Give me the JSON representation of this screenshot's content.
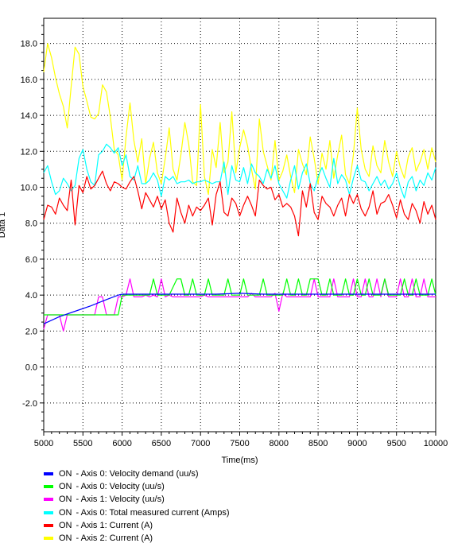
{
  "chart_data": {
    "type": "line",
    "xlabel": "Time(ms)",
    "ylabel": "Data 1",
    "xlim": [
      5000,
      10000
    ],
    "ylim": [
      -3.6,
      19.4
    ],
    "xticks": [
      5000,
      5500,
      6000,
      6500,
      7000,
      7500,
      8000,
      8500,
      9000,
      9500,
      10000
    ],
    "yticks": [
      -2.0,
      0.0,
      2.0,
      4.0,
      6.0,
      8.0,
      10.0,
      12.0,
      14.0,
      16.0,
      18.0
    ],
    "xtick_labels": [
      "5000",
      "5500",
      "6000",
      "6500",
      "7000",
      "7500",
      "8000",
      "8500",
      "9000",
      "9500",
      "10000"
    ],
    "ytick_labels": [
      "-2.0",
      "0.0",
      "2.0",
      "4.0",
      "6.0",
      "8.0",
      "10.0",
      "12.0",
      "14.0",
      "16.0",
      "18.0"
    ],
    "grid": true,
    "legend_position": "bottom",
    "series": [
      {
        "status": "ON",
        "name": "- Axis 0: Velocity demand (uu/s)",
        "color": "#0000ff",
        "x": [
          5000,
          5200,
          5400,
          5600,
          5800,
          5950,
          6000,
          6300,
          6600,
          6900,
          7200,
          7500,
          7800,
          8100,
          8400,
          8700,
          9000,
          9300,
          9600,
          10000
        ],
        "y": [
          2.4,
          2.8,
          3.1,
          3.4,
          3.75,
          4.0,
          4.05,
          4.05,
          4.05,
          4.05,
          4.05,
          4.1,
          4.05,
          4.05,
          4.05,
          4.05,
          4.05,
          4.05,
          4.05,
          4.05
        ]
      },
      {
        "status": "ON",
        "name": "- Axis 0: Velocity (uu/s)",
        "color": "#00ff00",
        "x": [
          5000,
          5300,
          5350,
          5650,
          5700,
          5950,
          6000,
          6350,
          6400,
          6450,
          6500,
          6550,
          6600,
          6700,
          6750,
          6800,
          6850,
          6900,
          6950,
          7000,
          7050,
          7100,
          7150,
          7200,
          7250,
          7300,
          7350,
          7400,
          7450,
          7500,
          7550,
          7600,
          7650,
          7700,
          7750,
          7800,
          7850,
          7900,
          7950,
          8000,
          8050,
          8100,
          8150,
          8200,
          8250,
          8300,
          8350,
          8400,
          8450,
          8500,
          8550,
          8600,
          8650,
          8700,
          8750,
          8800,
          8850,
          8900,
          8950,
          9000,
          9050,
          9100,
          9150,
          9200,
          9250,
          9300,
          9350,
          9400,
          9450,
          9500,
          9550,
          9600,
          9650,
          9700,
          9750,
          9800,
          9850,
          9900,
          9950,
          10000
        ],
        "y": [
          2.9,
          2.9,
          2.9,
          2.9,
          2.9,
          2.9,
          4.0,
          4.0,
          4.9,
          4.0,
          4.0,
          4.0,
          4.0,
          4.9,
          4.9,
          4.0,
          4.0,
          4.9,
          4.0,
          4.0,
          4.0,
          4.9,
          4.0,
          4.0,
          4.0,
          4.0,
          4.9,
          4.0,
          4.0,
          4.0,
          4.9,
          4.0,
          4.0,
          4.0,
          4.0,
          4.9,
          4.0,
          4.0,
          4.0,
          4.0,
          4.0,
          4.9,
          4.0,
          4.0,
          4.9,
          4.0,
          4.0,
          4.9,
          4.9,
          4.9,
          4.0,
          4.0,
          4.9,
          4.0,
          4.0,
          4.0,
          4.9,
          4.0,
          4.0,
          4.9,
          4.0,
          4.0,
          4.9,
          4.0,
          4.0,
          4.0,
          4.9,
          4.0,
          4.0,
          4.0,
          4.0,
          4.9,
          4.0,
          4.0,
          4.9,
          4.0,
          4.0,
          4.0,
          4.9,
          4.0
        ]
      },
      {
        "status": "ON",
        "name": "- Axis 1: Velocity (uu/s)",
        "color": "#ff00ff",
        "x": [
          5000,
          5050,
          5100,
          5150,
          5200,
          5250,
          5300,
          5350,
          5400,
          5450,
          5500,
          5550,
          5600,
          5650,
          5700,
          5750,
          5800,
          5850,
          5900,
          5950,
          6000,
          6050,
          6100,
          6150,
          6200,
          6250,
          6300,
          6350,
          6400,
          6450,
          6500,
          6550,
          6600,
          6650,
          6700,
          6750,
          6800,
          6850,
          6900,
          6950,
          7000,
          7050,
          7100,
          7150,
          7200,
          7250,
          7300,
          7350,
          7400,
          7450,
          7500,
          7550,
          7600,
          7650,
          7700,
          7750,
          7800,
          7850,
          7900,
          7950,
          8000,
          8050,
          8100,
          8150,
          8200,
          8250,
          8300,
          8350,
          8400,
          8450,
          8500,
          8550,
          8600,
          8650,
          8700,
          8750,
          8800,
          8850,
          8900,
          8950,
          9000,
          9050,
          9100,
          9150,
          9200,
          9250,
          9300,
          9350,
          9400,
          9450,
          9500,
          9550,
          9600,
          9650,
          9700,
          9750,
          9800,
          9850,
          9900,
          9950,
          10000
        ],
        "y": [
          2.1,
          2.9,
          2.9,
          2.9,
          2.9,
          2.0,
          2.9,
          2.9,
          2.9,
          2.9,
          2.9,
          2.9,
          2.9,
          2.9,
          3.9,
          3.9,
          2.9,
          2.9,
          2.9,
          3.9,
          3.9,
          4.0,
          4.9,
          3.9,
          3.9,
          3.9,
          4.0,
          3.9,
          4.0,
          3.9,
          4.9,
          3.9,
          4.0,
          3.9,
          3.9,
          3.9,
          3.9,
          3.9,
          3.9,
          3.9,
          3.9,
          4.0,
          3.9,
          3.9,
          3.9,
          3.9,
          3.9,
          3.9,
          3.9,
          3.9,
          3.9,
          3.9,
          3.9,
          4.1,
          3.9,
          3.9,
          3.9,
          3.9,
          3.9,
          4.1,
          3.1,
          4.1,
          3.9,
          3.9,
          3.9,
          3.9,
          3.9,
          3.9,
          3.9,
          4.9,
          3.9,
          3.9,
          3.9,
          3.9,
          4.9,
          3.9,
          3.9,
          3.9,
          3.9,
          4.9,
          3.9,
          3.9,
          4.9,
          3.9,
          3.9,
          4.9,
          3.9,
          4.9,
          3.9,
          3.9,
          3.9,
          4.9,
          3.9,
          3.9,
          4.9,
          3.9,
          3.9,
          4.9,
          3.9,
          3.9,
          3.9
        ]
      },
      {
        "status": "ON",
        "name": "- Axis 0: Total measured current (Amps)",
        "color": "#00ffff",
        "x": [
          5000,
          5050,
          5100,
          5150,
          5200,
          5250,
          5300,
          5350,
          5400,
          5450,
          5500,
          5550,
          5600,
          5650,
          5700,
          5750,
          5800,
          5850,
          5900,
          5950,
          6000,
          6050,
          6100,
          6150,
          6200,
          6250,
          6300,
          6350,
          6400,
          6450,
          6500,
          6550,
          6600,
          6650,
          6700,
          6750,
          6800,
          6850,
          6900,
          6950,
          7000,
          7050,
          7100,
          7150,
          7200,
          7250,
          7300,
          7350,
          7400,
          7450,
          7500,
          7550,
          7600,
          7650,
          7700,
          7750,
          7800,
          7850,
          7900,
          7950,
          8000,
          8050,
          8100,
          8150,
          8200,
          8250,
          8300,
          8350,
          8400,
          8450,
          8500,
          8550,
          8600,
          8650,
          8700,
          8750,
          8800,
          8850,
          8900,
          8950,
          9000,
          9050,
          9100,
          9150,
          9200,
          9250,
          9300,
          9350,
          9400,
          9450,
          9500,
          9550,
          9600,
          9650,
          9700,
          9750,
          9800,
          9850,
          9900,
          9950,
          10000
        ],
        "y": [
          10.8,
          11.2,
          10.3,
          9.6,
          9.8,
          10.5,
          10.2,
          9.8,
          10.1,
          11.6,
          12.1,
          11.0,
          10.3,
          10.1,
          11.8,
          12.0,
          12.4,
          12.2,
          11.9,
          12.2,
          11.2,
          11.8,
          10.6,
          10.4,
          11.2,
          10.2,
          10.2,
          10.4,
          10.8,
          10.4,
          9.5,
          10.6,
          10.4,
          10.6,
          10.2,
          10.3,
          10.3,
          10.4,
          10.2,
          10.3,
          10.3,
          10.4,
          10.3,
          10.2,
          10.3,
          10.3,
          11.4,
          9.6,
          11.2,
          10.4,
          10.3,
          11.1,
          10.2,
          11.3,
          10.8,
          10.6,
          10.2,
          11.0,
          10.5,
          11.2,
          10.2,
          9.8,
          9.4,
          10.4,
          11.2,
          9.9,
          10.8,
          11.3,
          10.2,
          9.8,
          10.6,
          11.1,
          10.5,
          10.0,
          11.6,
          10.2,
          10.7,
          10.4,
          9.6,
          10.5,
          11.2,
          10.4,
          10.3,
          9.8,
          10.2,
          10.6,
          10.1,
          10.4,
          9.9,
          10.2,
          10.8,
          10.0,
          9.4,
          10.3,
          10.6,
          9.8,
          10.4,
          10.1,
          10.8,
          10.4,
          11.1
        ]
      },
      {
        "status": "ON",
        "name": "- Axis 1: Current (A)",
        "color": "#ff0000",
        "x": [
          5000,
          5050,
          5100,
          5150,
          5200,
          5250,
          5300,
          5350,
          5400,
          5450,
          5500,
          5550,
          5600,
          5650,
          5700,
          5750,
          5800,
          5850,
          5900,
          5950,
          6000,
          6050,
          6100,
          6150,
          6200,
          6250,
          6300,
          6350,
          6400,
          6450,
          6500,
          6550,
          6600,
          6650,
          6700,
          6750,
          6800,
          6850,
          6900,
          6950,
          7000,
          7050,
          7100,
          7150,
          7200,
          7250,
          7300,
          7350,
          7400,
          7450,
          7500,
          7550,
          7600,
          7650,
          7700,
          7750,
          7800,
          7850,
          7900,
          7950,
          8000,
          8050,
          8100,
          8150,
          8200,
          8250,
          8300,
          8350,
          8400,
          8450,
          8500,
          8550,
          8600,
          8650,
          8700,
          8750,
          8800,
          8850,
          8900,
          8950,
          9000,
          9050,
          9100,
          9150,
          9200,
          9250,
          9300,
          9350,
          9400,
          9450,
          9500,
          9550,
          9600,
          9650,
          9700,
          9750,
          9800,
          9850,
          9900,
          9950,
          10000
        ],
        "y": [
          8.2,
          9.0,
          8.9,
          8.5,
          9.4,
          9.0,
          8.7,
          10.4,
          7.9,
          10.1,
          9.7,
          10.6,
          9.9,
          10.1,
          10.5,
          10.9,
          10.2,
          9.8,
          10.3,
          10.2,
          10.0,
          9.9,
          10.3,
          10.6,
          9.8,
          8.8,
          9.7,
          9.3,
          8.9,
          9.5,
          8.8,
          9.3,
          8.0,
          7.5,
          9.4,
          8.6,
          8.0,
          9.0,
          8.4,
          8.9,
          8.7,
          9.0,
          9.4,
          7.9,
          9.6,
          10.3,
          8.6,
          8.4,
          9.4,
          9.1,
          8.4,
          9.0,
          9.5,
          9.0,
          8.4,
          10.4,
          10.1,
          9.9,
          10.0,
          9.3,
          9.6,
          8.9,
          9.1,
          8.9,
          8.4,
          7.3,
          9.8,
          8.9,
          10.2,
          8.6,
          8.2,
          9.5,
          9.1,
          8.9,
          8.4,
          9.0,
          9.4,
          8.4,
          9.6,
          9.1,
          9.6,
          8.8,
          8.4,
          8.9,
          9.8,
          8.5,
          9.1,
          9.2,
          9.6,
          9.0,
          8.3,
          9.3,
          8.5,
          8.2,
          9.1,
          8.7,
          8.0,
          9.2,
          8.5,
          9.0,
          8.2
        ]
      },
      {
        "status": "ON",
        "name": "- Axis 2: Current (A)",
        "color": "#ffff00",
        "x": [
          5000,
          5050,
          5100,
          5150,
          5200,
          5250,
          5300,
          5350,
          5400,
          5450,
          5500,
          5550,
          5600,
          5650,
          5700,
          5750,
          5800,
          5850,
          5900,
          5950,
          6000,
          6050,
          6100,
          6150,
          6200,
          6250,
          6300,
          6350,
          6400,
          6450,
          6500,
          6550,
          6600,
          6650,
          6700,
          6750,
          6800,
          6850,
          6900,
          6950,
          7000,
          7050,
          7100,
          7150,
          7200,
          7250,
          7300,
          7350,
          7400,
          7450,
          7500,
          7550,
          7600,
          7650,
          7700,
          7750,
          7800,
          7850,
          7900,
          7950,
          8000,
          8050,
          8100,
          8150,
          8200,
          8250,
          8300,
          8350,
          8400,
          8450,
          8500,
          8550,
          8600,
          8650,
          8700,
          8750,
          8800,
          8850,
          8900,
          8950,
          9000,
          9050,
          9100,
          9150,
          9200,
          9250,
          9300,
          9350,
          9400,
          9450,
          9500,
          9550,
          9600,
          9650,
          9700,
          9750,
          9800,
          9850,
          9900,
          9950,
          10000
        ],
        "y": [
          16.4,
          18.0,
          17.2,
          16.1,
          15.2,
          14.5,
          13.3,
          15.6,
          17.8,
          17.4,
          15.6,
          14.8,
          13.9,
          13.8,
          14.1,
          15.7,
          15.3,
          13.9,
          12.1,
          11.8,
          10.4,
          12.8,
          14.7,
          12.6,
          11.4,
          12.7,
          10.2,
          11.6,
          12.5,
          10.8,
          10.2,
          11.6,
          13.3,
          11.0,
          10.4,
          11.8,
          13.6,
          12.4,
          10.3,
          10.1,
          14.6,
          10.6,
          9.6,
          12.1,
          11.1,
          13.6,
          10.8,
          11.4,
          14.2,
          10.8,
          12.2,
          13.2,
          12.3,
          11.0,
          9.9,
          13.8,
          12.0,
          11.2,
          10.4,
          12.6,
          10.4,
          10.9,
          11.8,
          10.6,
          9.7,
          12.1,
          11.3,
          10.7,
          12.8,
          11.6,
          10.2,
          11.9,
          11.0,
          12.6,
          10.5,
          11.8,
          12.9,
          10.7,
          10.2,
          11.8,
          14.4,
          12.1,
          11.0,
          10.6,
          12.3,
          11.2,
          10.8,
          12.6,
          11.4,
          10.6,
          12.0,
          11.1,
          10.5,
          11.7,
          12.2,
          10.9,
          11.4,
          12.1,
          11.0,
          12.2,
          11.4
        ]
      }
    ]
  }
}
